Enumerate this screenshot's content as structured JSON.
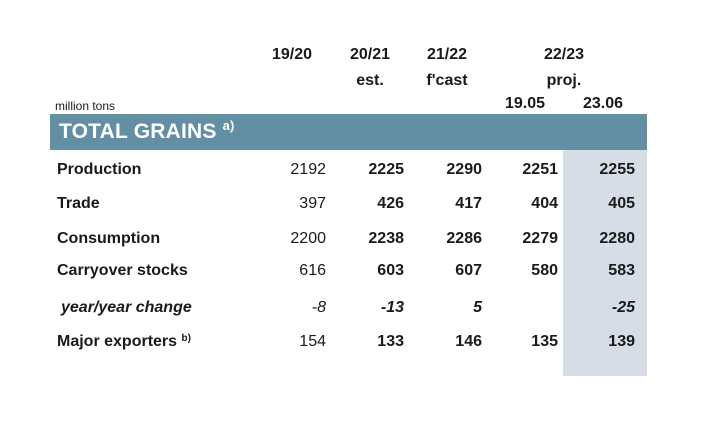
{
  "header": {
    "columns": [
      {
        "line1": "19/20",
        "line2": ""
      },
      {
        "line1": "20/21",
        "line2": "est."
      },
      {
        "line1": "21/22",
        "line2": "f'cast"
      }
    ],
    "proj_group": {
      "line1": "22/23",
      "line2": "proj."
    },
    "proj_sub": [
      "19.05",
      "23.06"
    ],
    "unit_label": "million tons"
  },
  "section": {
    "title": "TOTAL GRAINS",
    "note": "a)"
  },
  "colors": {
    "band": "#628fa3",
    "highlight": "#d7dde7"
  },
  "rows": [
    {
      "label": "Production",
      "note": "",
      "style": "bold",
      "values": [
        "2192",
        "2225",
        "2290",
        "2251",
        "2255"
      ]
    },
    {
      "label": "Trade",
      "note": "",
      "style": "bold",
      "values": [
        "397",
        "426",
        "417",
        "404",
        "405"
      ]
    },
    {
      "label": "Consumption",
      "note": "",
      "style": "bold",
      "values": [
        "2200",
        "2238",
        "2286",
        "2279",
        "2280"
      ]
    },
    {
      "label": "Carryover stocks",
      "note": "",
      "style": "bold",
      "values": [
        "616",
        "603",
        "607",
        "580",
        "583"
      ]
    },
    {
      "label": "year/year change",
      "note": "",
      "style": "italic",
      "values": [
        "-8",
        "-13",
        "5",
        "",
        "-25"
      ]
    },
    {
      "label": "Major exporters",
      "note": "b)",
      "style": "bold",
      "values": [
        "154",
        "133",
        "146",
        "135",
        "139"
      ]
    }
  ]
}
